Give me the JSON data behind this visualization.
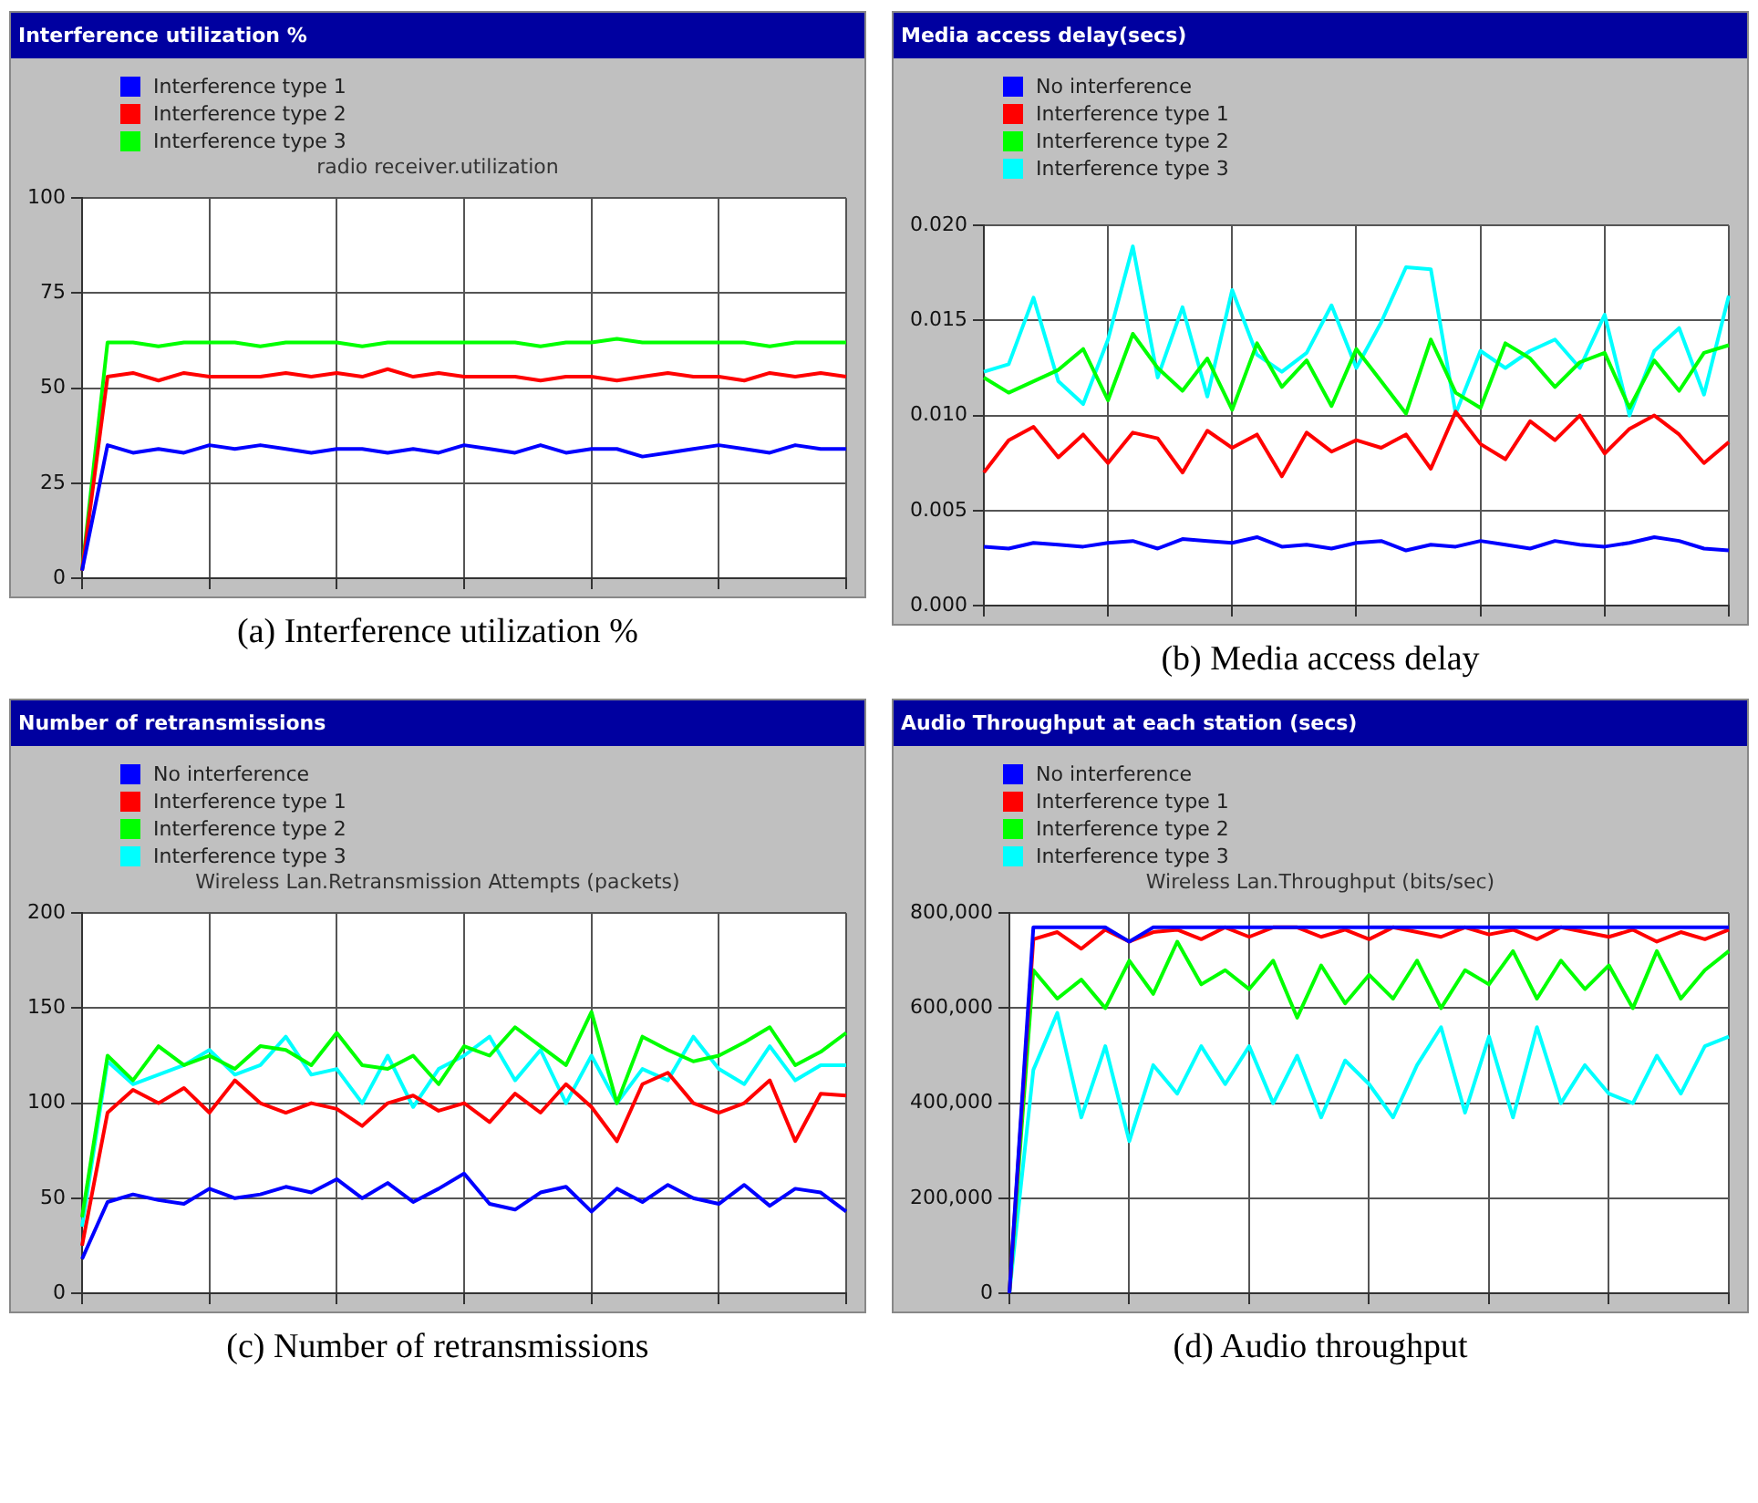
{
  "chart_data": [
    {
      "type": "line",
      "title": "Interference utilization %",
      "subtitle": "radio receiver.utilization",
      "annotations": [
        "(a) Interference utilization %"
      ],
      "legend": "top left",
      "marker": "none",
      "grid": true,
      "tick_labels": "y",
      "categories": [
        null,
        null,
        null,
        null,
        null,
        null,
        null,
        null,
        null,
        null,
        null,
        null,
        null,
        null,
        null,
        null,
        null,
        null,
        null,
        null,
        null,
        null,
        null,
        null,
        null,
        null,
        null,
        null,
        null,
        null,
        null
      ],
      "ylim": [
        0,
        100
      ],
      "yticks": [
        0,
        25,
        50,
        75,
        100
      ],
      "series": [
        {
          "name": "Interference type 1",
          "color": "#0000ff",
          "values": [
            2,
            35,
            33,
            34,
            33,
            35,
            34,
            35,
            34,
            33,
            34,
            34,
            33,
            34,
            33,
            35,
            34,
            33,
            35,
            33,
            34,
            34,
            32,
            33,
            34,
            35,
            34,
            33,
            35,
            34,
            34
          ]
        },
        {
          "name": "Interference type 2",
          "color": "#ff0000",
          "values": [
            2,
            53,
            54,
            52,
            54,
            53,
            53,
            53,
            54,
            53,
            54,
            53,
            55,
            53,
            54,
            53,
            53,
            53,
            52,
            53,
            53,
            52,
            53,
            54,
            53,
            53,
            52,
            54,
            53,
            54,
            53
          ]
        },
        {
          "name": "Interference type 3",
          "color": "#00ff00",
          "values": [
            2,
            62,
            62,
            61,
            62,
            62,
            62,
            61,
            62,
            62,
            62,
            61,
            62,
            62,
            62,
            62,
            62,
            62,
            61,
            62,
            62,
            63,
            62,
            62,
            62,
            62,
            62,
            61,
            62,
            62,
            62
          ]
        }
      ]
    },
    {
      "type": "line",
      "title": "Media access delay(secs)",
      "annotations": [
        "(b) Media access delay"
      ],
      "legend": "top left",
      "marker": "none",
      "grid": true,
      "tick_labels": "y",
      "categories": [
        null,
        null,
        null,
        null,
        null,
        null,
        null,
        null,
        null,
        null,
        null,
        null,
        null,
        null,
        null,
        null,
        null,
        null,
        null,
        null,
        null,
        null,
        null,
        null,
        null,
        null,
        null,
        null,
        null,
        null,
        null
      ],
      "ylim": [
        0,
        0.02
      ],
      "yticks": [
        {
          "value": 0,
          "label": "0.000"
        },
        {
          "value": 0.005,
          "label": "0.005"
        },
        {
          "value": 0.01,
          "label": "0.010"
        },
        {
          "value": 0.015,
          "label": "0.015"
        },
        {
          "value": 0.02,
          "label": "0.020"
        }
      ],
      "series": [
        {
          "name": "No interference",
          "color": "#0000ff",
          "values": [
            0.0031,
            0.003,
            0.0033,
            0.0032,
            0.0031,
            0.0033,
            0.0034,
            0.003,
            0.0035,
            0.0034,
            0.0033,
            0.0036,
            0.0031,
            0.0032,
            0.003,
            0.0033,
            0.0034,
            0.0029,
            0.0032,
            0.0031,
            0.0034,
            0.0032,
            0.003,
            0.0034,
            0.0032,
            0.0031,
            0.0033,
            0.0036,
            0.0034,
            0.003,
            0.0029
          ]
        },
        {
          "name": "Interference type 1",
          "color": "#ff0000",
          "values": [
            0.007,
            0.0087,
            0.0094,
            0.0078,
            0.009,
            0.0075,
            0.0091,
            0.0088,
            0.007,
            0.0092,
            0.0083,
            0.009,
            0.0068,
            0.0091,
            0.0081,
            0.0087,
            0.0083,
            0.009,
            0.0072,
            0.0102,
            0.0085,
            0.0077,
            0.0097,
            0.0087,
            0.01,
            0.008,
            0.0093,
            0.01,
            0.009,
            0.0075,
            0.0086
          ]
        },
        {
          "name": "Interference type 2",
          "color": "#00ff00",
          "values": [
            0.012,
            0.0112,
            0.0118,
            0.0124,
            0.0135,
            0.0108,
            0.0143,
            0.0125,
            0.0113,
            0.013,
            0.0103,
            0.0138,
            0.0115,
            0.0129,
            0.0105,
            0.0135,
            0.0118,
            0.0101,
            0.014,
            0.0112,
            0.0104,
            0.0138,
            0.013,
            0.0115,
            0.0128,
            0.0133,
            0.0104,
            0.0129,
            0.0113,
            0.0133,
            0.0137
          ]
        },
        {
          "name": "Interference type 3",
          "color": "#00ffff",
          "values": [
            0.0123,
            0.0127,
            0.0162,
            0.0118,
            0.0106,
            0.014,
            0.0189,
            0.012,
            0.0157,
            0.011,
            0.0166,
            0.0132,
            0.0123,
            0.0133,
            0.0158,
            0.0125,
            0.0149,
            0.0178,
            0.0177,
            0.0101,
            0.0134,
            0.0125,
            0.0134,
            0.014,
            0.0125,
            0.0153,
            0.01,
            0.0134,
            0.0146,
            0.0111,
            0.0163
          ]
        }
      ]
    },
    {
      "type": "line",
      "title": "Number of retransmissions",
      "subtitle": "Wireless Lan.Retransmission Attempts (packets)",
      "annotations": [
        "(c) Number of retransmissions"
      ],
      "legend": "top left",
      "marker": "none",
      "grid": true,
      "tick_labels": "y",
      "categories": [
        null,
        null,
        null,
        null,
        null,
        null,
        null,
        null,
        null,
        null,
        null,
        null,
        null,
        null,
        null,
        null,
        null,
        null,
        null,
        null,
        null,
        null,
        null,
        null,
        null,
        null,
        null,
        null,
        null,
        null,
        null
      ],
      "ylim": [
        0,
        200
      ],
      "yticks": [
        0,
        50,
        100,
        150,
        200
      ],
      "series": [
        {
          "name": "No interference",
          "color": "#0000ff",
          "values": [
            18,
            48,
            52,
            49,
            47,
            55,
            50,
            52,
            56,
            53,
            60,
            50,
            58,
            48,
            55,
            63,
            47,
            44,
            53,
            56,
            43,
            55,
            48,
            57,
            50,
            47,
            57,
            46,
            55,
            53,
            43
          ]
        },
        {
          "name": "Interference type 1",
          "color": "#ff0000",
          "values": [
            25,
            95,
            107,
            100,
            108,
            95,
            112,
            100,
            95,
            100,
            97,
            88,
            100,
            104,
            96,
            100,
            90,
            105,
            95,
            110,
            98,
            80,
            110,
            116,
            100,
            95,
            100,
            112,
            80,
            105,
            104
          ]
        },
        {
          "name": "Interference type 2",
          "color": "#00ff00",
          "values": [
            40,
            125,
            112,
            130,
            120,
            125,
            118,
            130,
            128,
            120,
            137,
            120,
            118,
            125,
            110,
            130,
            125,
            140,
            130,
            120,
            148,
            100,
            135,
            128,
            122,
            125,
            132,
            140,
            120,
            127,
            137
          ]
        },
        {
          "name": "Interference type 3",
          "color": "#00ffff",
          "values": [
            35,
            122,
            110,
            115,
            120,
            128,
            115,
            120,
            135,
            115,
            118,
            100,
            125,
            98,
            118,
            125,
            135,
            112,
            128,
            100,
            125,
            100,
            118,
            112,
            135,
            118,
            110,
            130,
            112,
            120,
            120
          ]
        }
      ]
    },
    {
      "type": "line",
      "title": "Audio Throughput at each station (secs)",
      "subtitle": "Wireless Lan.Throughput (bits/sec)",
      "annotations": [
        "(d) Audio throughput"
      ],
      "legend": "top left",
      "marker": "none",
      "grid": true,
      "tick_labels": "y",
      "categories": [
        null,
        null,
        null,
        null,
        null,
        null,
        null,
        null,
        null,
        null,
        null,
        null,
        null,
        null,
        null,
        null,
        null,
        null,
        null,
        null,
        null,
        null,
        null,
        null,
        null,
        null,
        null,
        null,
        null,
        null,
        null
      ],
      "ylim": [
        0,
        800000
      ],
      "yticks": [
        {
          "value": 0,
          "label": "0"
        },
        {
          "value": 200000,
          "label": "200,000"
        },
        {
          "value": 400000,
          "label": "400,000"
        },
        {
          "value": 600000,
          "label": "600,000"
        },
        {
          "value": 800000,
          "label": "800,000"
        }
      ],
      "series": [
        {
          "name": "No interference",
          "color": "#0000ff",
          "values": [
            0,
            770000,
            770000,
            770000,
            770000,
            740000,
            770000,
            770000,
            770000,
            770000,
            770000,
            770000,
            770000,
            770000,
            770000,
            770000,
            770000,
            770000,
            770000,
            770000,
            770000,
            770000,
            770000,
            770000,
            770000,
            770000,
            770000,
            770000,
            770000,
            770000,
            770000
          ]
        },
        {
          "name": "Interference type 1",
          "color": "#ff0000",
          "values": [
            0,
            745000,
            760000,
            725000,
            765000,
            740000,
            760000,
            765000,
            745000,
            770000,
            750000,
            770000,
            770000,
            750000,
            765000,
            745000,
            770000,
            760000,
            750000,
            770000,
            755000,
            765000,
            745000,
            770000,
            760000,
            750000,
            765000,
            740000,
            760000,
            745000,
            765000
          ]
        },
        {
          "name": "Interference type 2",
          "color": "#00ff00",
          "values": [
            0,
            680000,
            620000,
            660000,
            600000,
            700000,
            630000,
            740000,
            650000,
            680000,
            640000,
            700000,
            580000,
            690000,
            610000,
            670000,
            620000,
            700000,
            600000,
            680000,
            650000,
            720000,
            620000,
            700000,
            640000,
            690000,
            600000,
            720000,
            620000,
            680000,
            720000
          ]
        },
        {
          "name": "Interference type 3",
          "color": "#00ffff",
          "values": [
            0,
            470000,
            590000,
            370000,
            520000,
            320000,
            480000,
            420000,
            520000,
            440000,
            520000,
            400000,
            500000,
            370000,
            490000,
            440000,
            370000,
            480000,
            560000,
            380000,
            540000,
            370000,
            560000,
            400000,
            480000,
            420000,
            400000,
            500000,
            420000,
            520000,
            540000
          ]
        }
      ]
    }
  ]
}
